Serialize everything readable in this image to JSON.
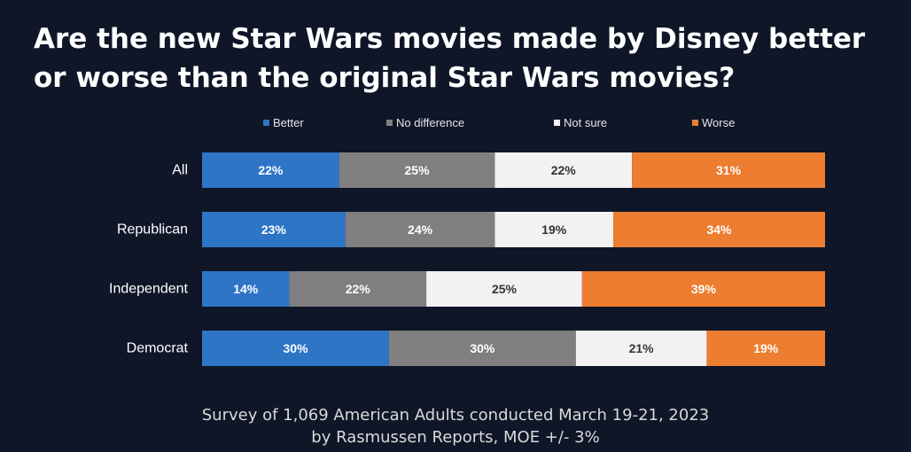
{
  "chart_data": {
    "type": "bar",
    "orientation": "horizontal",
    "stacked": true,
    "title": "Are the new Star Wars movies made by Disney better or worse than the original Star Wars movies?",
    "categories": [
      "All",
      "Republican",
      "Independent",
      "Democrat"
    ],
    "series": [
      {
        "name": "Better",
        "color": "#2e75c6",
        "label_color": "#ffffff",
        "values": [
          22,
          23,
          14,
          30
        ]
      },
      {
        "name": "No difference",
        "color": "#7f7f7f",
        "label_color": "#ffffff",
        "values": [
          25,
          24,
          22,
          30
        ]
      },
      {
        "name": "Not sure",
        "color": "#f2f2f2",
        "label_color": "#333333",
        "values": [
          22,
          19,
          25,
          21
        ]
      },
      {
        "name": "Worse",
        "color": "#ed7d31",
        "label_color": "#ffffff",
        "values": [
          31,
          34,
          39,
          19
        ]
      }
    ],
    "value_suffix": "%",
    "xlim": [
      0,
      100
    ],
    "legend_position": "top",
    "grid": false
  },
  "footer": {
    "line1": "Survey of 1,069 American Adults conducted March 19-21, 2023",
    "line2": "by Rasmussen Reports, MOE +/- 3%"
  },
  "colors": {
    "background": "#0f1628"
  }
}
